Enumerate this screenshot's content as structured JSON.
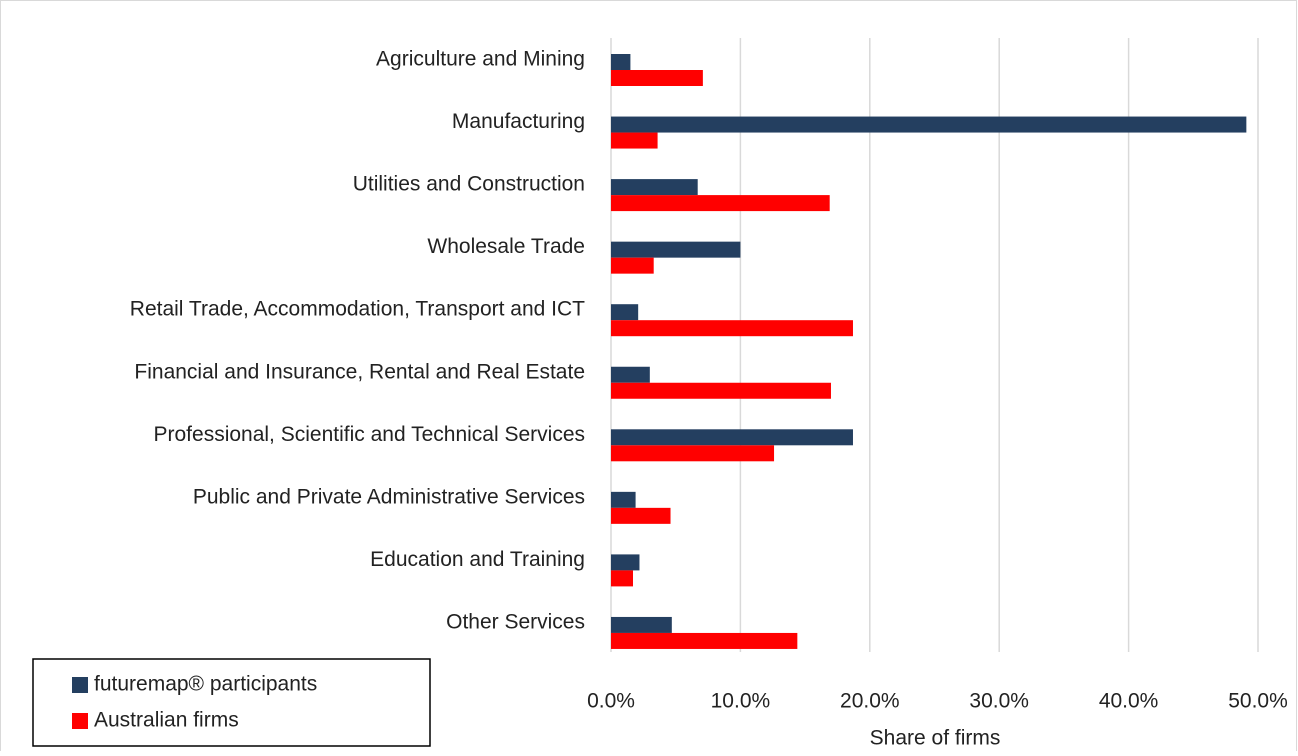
{
  "chart_data": {
    "type": "hbar",
    "categories": [
      "Agriculture and Mining",
      "Manufacturing",
      "Utilities and Construction",
      "Wholesale Trade",
      "Retail Trade, Accommodation, Transport and ICT",
      "Financial and Insurance, Rental and Real Estate",
      "Professional, Scientific and Technical Services",
      "Public and Private Administrative Services",
      "Education and Training",
      "Other Services"
    ],
    "series": [
      {
        "name": "futuremap® participants",
        "color": "#243f60",
        "values": [
          1.5,
          49.1,
          6.7,
          10.0,
          2.1,
          3.0,
          18.7,
          1.9,
          2.2,
          4.7
        ]
      },
      {
        "name": "Australian firms",
        "color": "#ff0000",
        "values": [
          7.1,
          3.6,
          16.9,
          3.3,
          18.7,
          17.0,
          12.6,
          4.6,
          1.7,
          14.4
        ]
      }
    ],
    "xlabel": "Share of firms",
    "xlim": [
      0,
      50
    ],
    "xticks": [
      {
        "value": 0,
        "label": "0.0%"
      },
      {
        "value": 10,
        "label": "10.0%"
      },
      {
        "value": 20,
        "label": "20.0%"
      },
      {
        "value": 30,
        "label": "30.0%"
      },
      {
        "value": 40,
        "label": "40.0%"
      },
      {
        "value": 50,
        "label": "50.0%"
      }
    ],
    "grid": true,
    "legend": "bottom-left"
  }
}
